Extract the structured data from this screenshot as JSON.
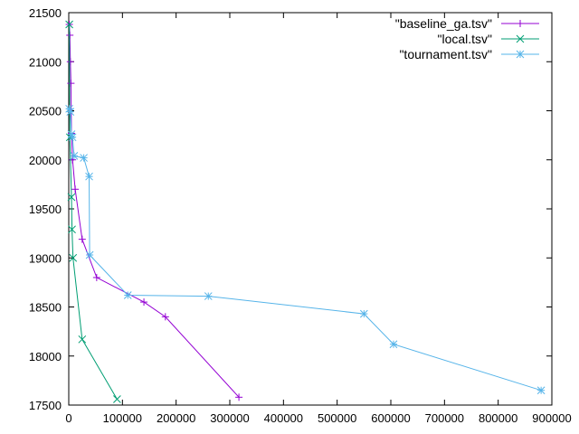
{
  "chart_data": {
    "type": "line",
    "title": "",
    "xlabel": "",
    "ylabel": "",
    "xlim": [
      0,
      900000
    ],
    "ylim": [
      17500,
      21500
    ],
    "x_ticks": [
      0,
      100000,
      200000,
      300000,
      400000,
      500000,
      600000,
      700000,
      800000,
      900000
    ],
    "y_ticks": [
      17500,
      18000,
      18500,
      19000,
      19500,
      20000,
      20500,
      21000,
      21500
    ],
    "grid": false,
    "legend_position": "top-right",
    "series": [
      {
        "name": "\"baseline_ga.tsv\"",
        "color": "#9400d3",
        "marker": "plus",
        "points": [
          [
            1000,
            21380
          ],
          [
            2000,
            21270
          ],
          [
            3000,
            21000
          ],
          [
            4000,
            20780
          ],
          [
            5000,
            20270
          ],
          [
            7000,
            20000
          ],
          [
            12000,
            19700
          ],
          [
            25000,
            19190
          ],
          [
            52000,
            18800
          ],
          [
            140000,
            18550
          ],
          [
            180000,
            18400
          ],
          [
            317000,
            17580
          ]
        ]
      },
      {
        "name": "\"local.tsv\"",
        "color": "#009e73",
        "marker": "x",
        "points": [
          [
            1000,
            21380
          ],
          [
            2000,
            20230
          ],
          [
            5000,
            19620
          ],
          [
            6000,
            19290
          ],
          [
            8000,
            19000
          ],
          [
            25000,
            18170
          ],
          [
            90000,
            17560
          ]
        ]
      },
      {
        "name": "\"tournament.tsv\"",
        "color": "#56b4e9",
        "marker": "star",
        "points": [
          [
            1000,
            20520
          ],
          [
            3000,
            20490
          ],
          [
            5000,
            20260
          ],
          [
            7000,
            20230
          ],
          [
            10000,
            20040
          ],
          [
            28000,
            20020
          ],
          [
            38000,
            19830
          ],
          [
            39000,
            19030
          ],
          [
            110000,
            18620
          ],
          [
            260000,
            18610
          ],
          [
            550000,
            18430
          ],
          [
            605000,
            18120
          ],
          [
            880000,
            17650
          ]
        ]
      }
    ]
  }
}
